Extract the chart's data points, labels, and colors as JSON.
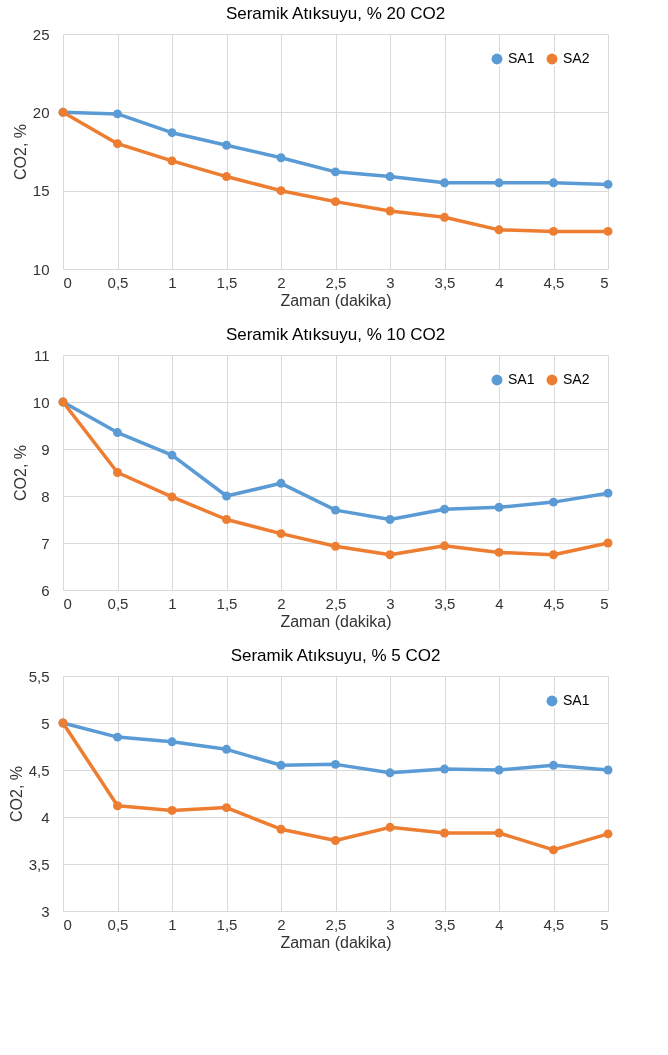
{
  "chart_data": [
    {
      "type": "line",
      "title": "Seramik Atıksuyu, % 20 CO2",
      "xlabel": "Zaman (dakika)",
      "ylabel": "CO2, %",
      "x": [
        0,
        0.5,
        1,
        1.5,
        2,
        2.5,
        3,
        3.5,
        4,
        4.5,
        5
      ],
      "xlim": [
        0,
        5
      ],
      "xticks": [
        0,
        {
          "value": 0.5,
          "label": "0,5"
        },
        1,
        {
          "value": 1.5,
          "label": "1,5"
        },
        2,
        {
          "value": 2.5,
          "label": "2,5"
        },
        3,
        {
          "value": 3.5,
          "label": "3,5"
        },
        4,
        {
          "value": 4.5,
          "label": "4,5"
        },
        5
      ],
      "ylim": [
        10,
        25
      ],
      "yticks": [
        10,
        15,
        20,
        25
      ],
      "grid": true,
      "legend": "top right",
      "marker": "circle",
      "line_style": "solid",
      "series": [
        {
          "name": "SA1",
          "color": "#5b9bd5",
          "values": [
            20,
            19.9,
            18.7,
            17.9,
            17.1,
            16.2,
            15.9,
            15.5,
            15.5,
            15.5,
            15.4
          ]
        },
        {
          "name": "SA2",
          "color": "#ed7d31",
          "values": [
            20,
            18,
            16.9,
            15.9,
            15,
            14.3,
            13.7,
            13.3,
            12.5,
            12.4,
            12.4
          ]
        }
      ]
    },
    {
      "type": "line",
      "title": "Seramik Atıksuyu, % 10  CO2",
      "xlabel": "Zaman (dakika)",
      "ylabel": "CO2, %",
      "x": [
        0,
        0.5,
        1,
        1.5,
        2,
        2.5,
        3,
        3.5,
        4,
        4.5,
        5
      ],
      "xlim": [
        0,
        5
      ],
      "xticks": [
        0,
        {
          "value": 0.5,
          "label": "0,5"
        },
        1,
        {
          "value": 1.5,
          "label": "1,5"
        },
        2,
        {
          "value": 2.5,
          "label": "2,5"
        },
        3,
        {
          "value": 3.5,
          "label": "3,5"
        },
        4,
        {
          "value": 4.5,
          "label": "4,5"
        },
        5
      ],
      "ylim": [
        6,
        11
      ],
      "yticks": [
        6,
        7,
        8,
        9,
        10,
        11
      ],
      "grid": true,
      "legend": "top right",
      "marker": "circle",
      "line_style": "solid",
      "series": [
        {
          "name": "SA1",
          "color": "#5b9bd5",
          "values": [
            10,
            9.35,
            8.87,
            8.0,
            8.27,
            7.7,
            7.5,
            7.72,
            7.76,
            7.87,
            8.06
          ]
        },
        {
          "name": "SA2",
          "color": "#ed7d31",
          "values": [
            10,
            8.5,
            7.98,
            7.5,
            7.2,
            6.93,
            6.75,
            6.94,
            6.8,
            6.75,
            7.0
          ]
        }
      ]
    },
    {
      "type": "line",
      "title": "Seramik Atıksuyu, % 5  CO2",
      "xlabel": "Zaman (dakika)",
      "ylabel": "CO2, %",
      "x": [
        0,
        0.5,
        1,
        1.5,
        2,
        2.5,
        3,
        3.5,
        4,
        4.5,
        5
      ],
      "xlim": [
        0,
        5
      ],
      "xticks": [
        0,
        {
          "value": 0.5,
          "label": "0,5"
        },
        1,
        {
          "value": 1.5,
          "label": "1,5"
        },
        2,
        {
          "value": 2.5,
          "label": "2,5"
        },
        3,
        {
          "value": 3.5,
          "label": "3,5"
        },
        4,
        {
          "value": 4.5,
          "label": "4,5"
        },
        5
      ],
      "ylim": [
        3,
        5.5
      ],
      "yticks": [
        3,
        {
          "value": 3.5,
          "label": "3,5"
        },
        4,
        {
          "value": 4.5,
          "label": "4,5"
        },
        5,
        {
          "value": 5.5,
          "label": "5,5"
        }
      ],
      "grid": true,
      "legend": "top right",
      "marker": "circle",
      "line_style": "solid",
      "series": [
        {
          "name": "SA1",
          "color": "#5b9bd5",
          "values": [
            5,
            4.85,
            4.8,
            4.72,
            4.55,
            4.56,
            4.47,
            4.51,
            4.5,
            4.55,
            4.5
          ]
        },
        {
          "color": "#ed7d31",
          "values": [
            5,
            4.12,
            4.07,
            4.1,
            3.87,
            3.75,
            3.89,
            3.83,
            3.83,
            3.65,
            3.82
          ]
        }
      ]
    }
  ]
}
